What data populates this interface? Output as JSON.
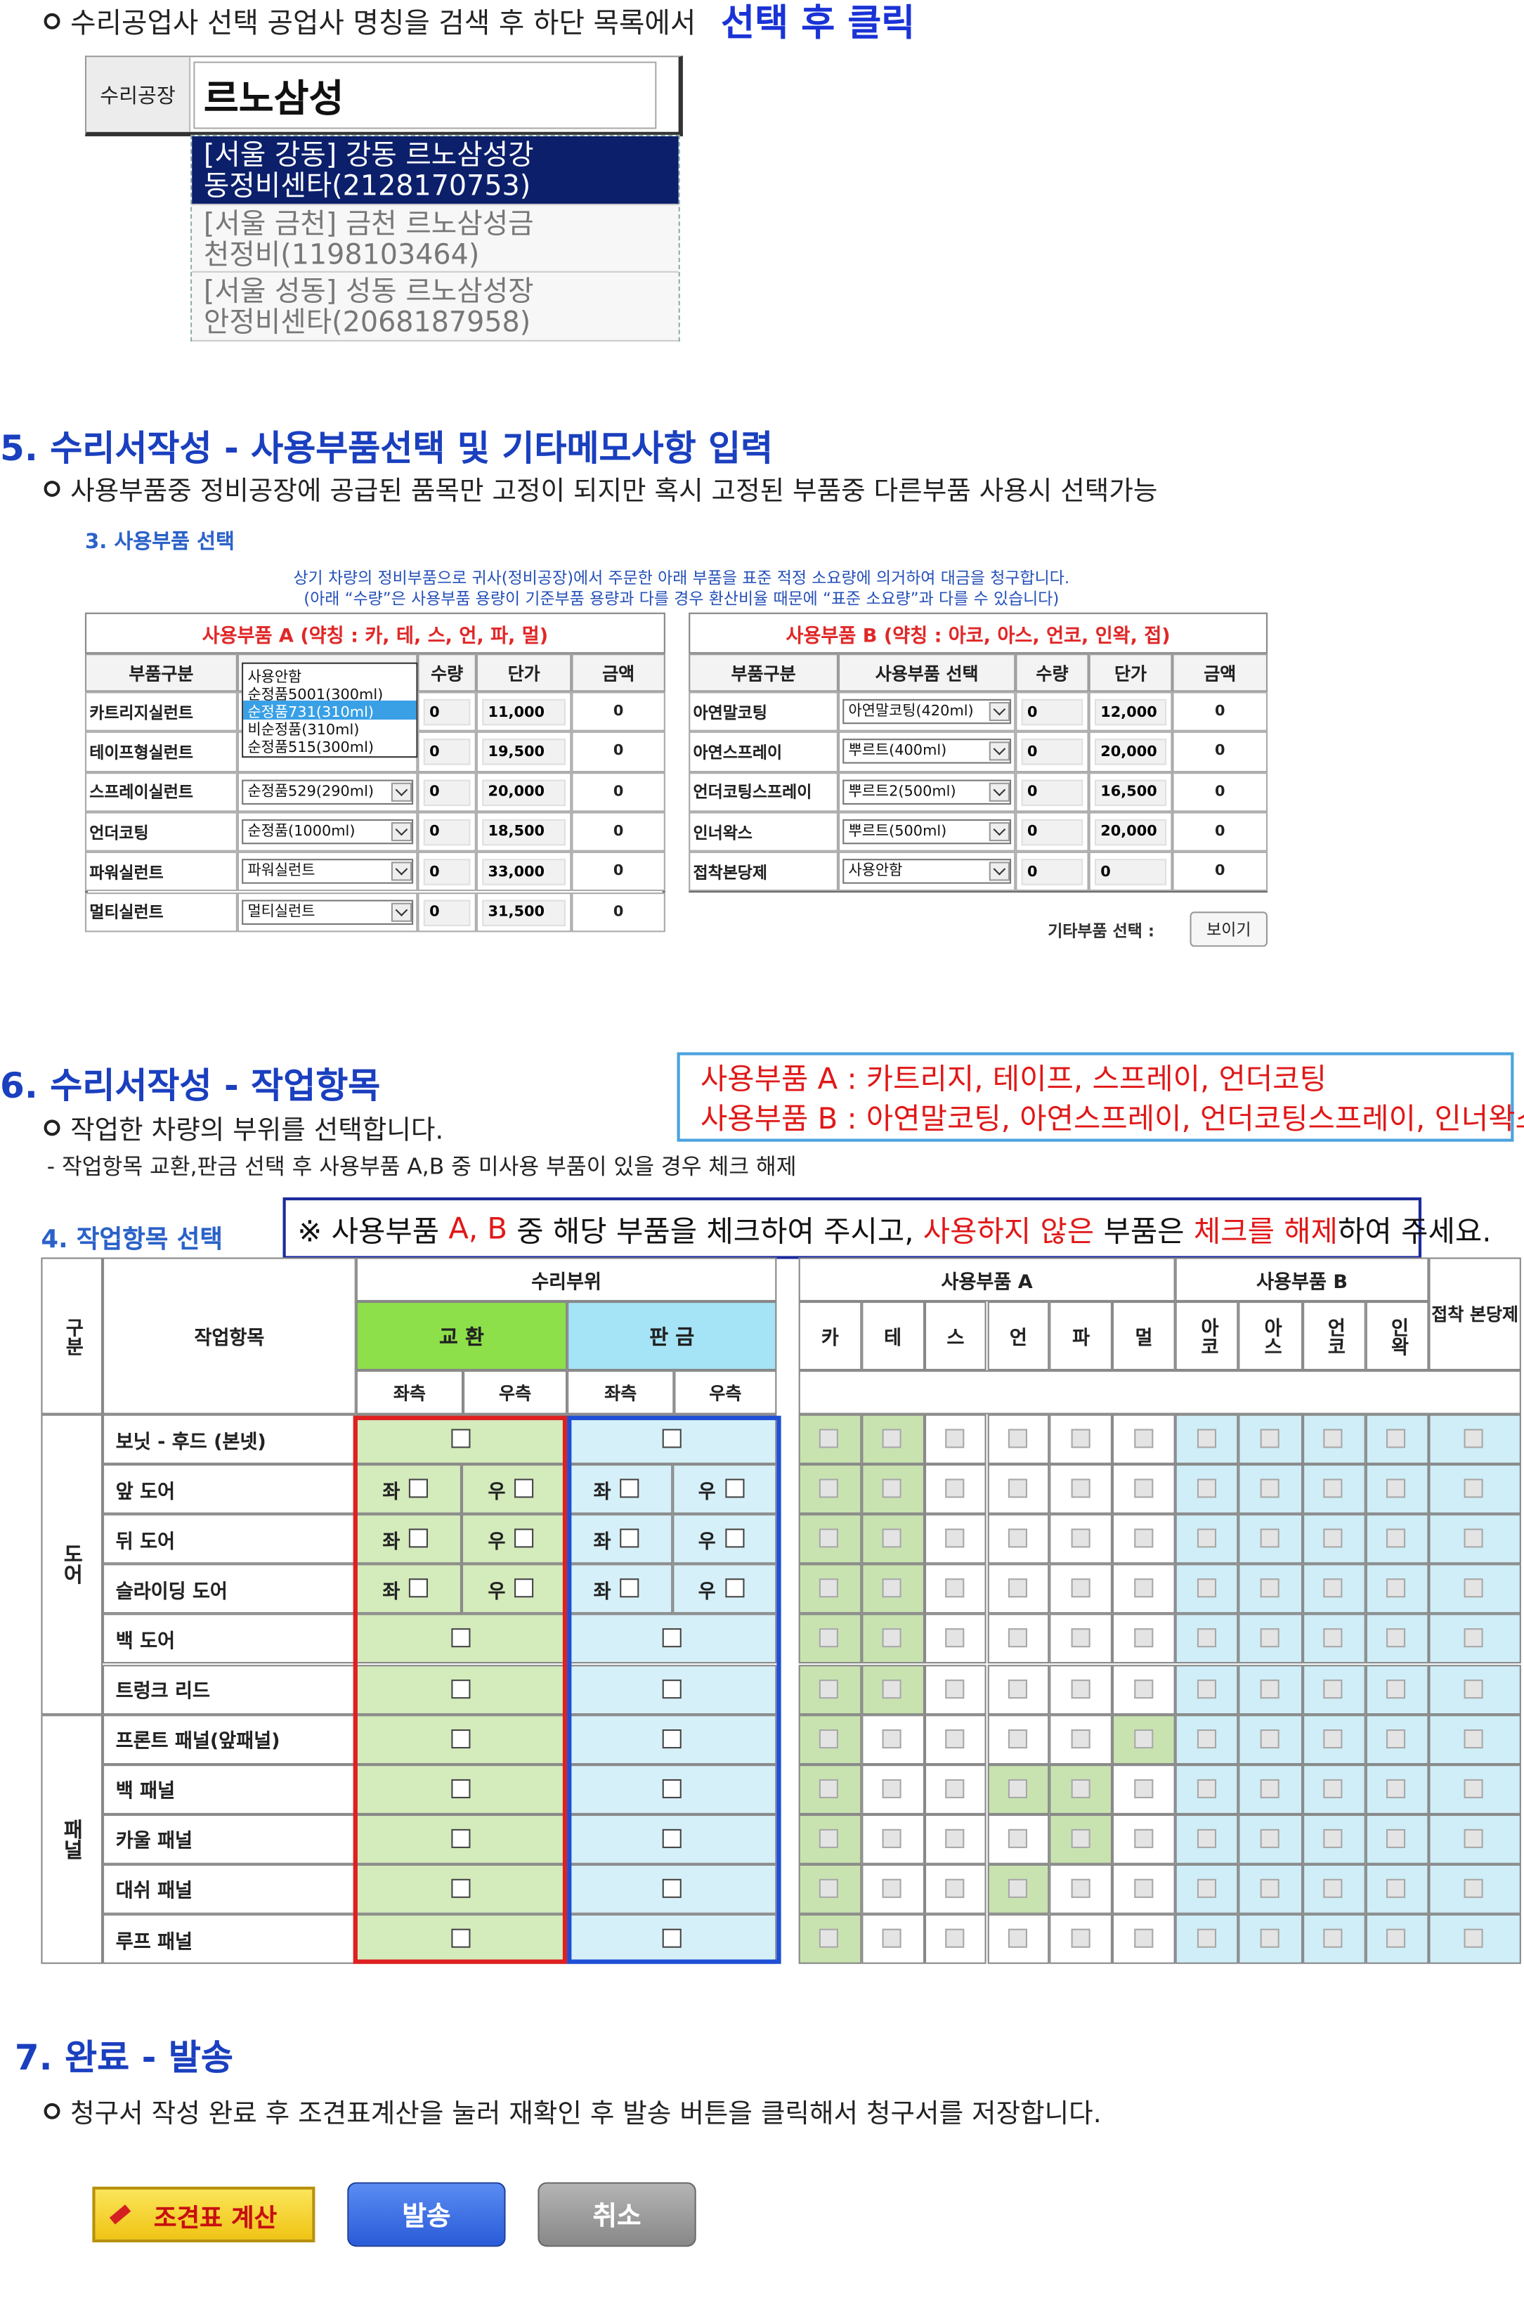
{
  "step4": {
    "bullet": "수리공업사 선택 공업사 명칭을 검색 후 하단 목록에서",
    "emphasis": "선택 후 클릭",
    "search_label": "수리공장",
    "search_query": "르노삼성",
    "results": [
      [
        "[서울 강동] 강동 르노삼성강",
        "동정비센타(2128170753)"
      ],
      [
        "[서울 금천] 금천 르노삼성금",
        "천정비(1198103464)"
      ],
      [
        "[서울 성동] 성동 르노삼성장",
        "안정비센타(2068187958)"
      ]
    ]
  },
  "section5": {
    "title": "5. 수리서작성 - 사용부품선택 및 기타메모사항 입력",
    "bullet": "사용부품중 정비공장에 공급된 품목만 고정이 되지만 혹시 고정된 부품중 다른부품 사용시 선택가능",
    "panel_title": "3. 사용부품 선택",
    "notice": [
      "상기 차량의 정비부품으로 귀사(정비공장)에서 주문한 아래 부품을 표준 적정 소요량에 의거하여 대금을 청구합니다.",
      "(아래 “수량”은 사용부품 용량이 기준부품 용량과 다를 경우 환산비율 때문에 “표준 소요량”과 다를 수 있습니다)"
    ],
    "tables": [
      {
        "title": "사용부품 A (약칭 : 카, 테, 스, 언, 파, 멀)",
        "headers": [
          "부품구분",
          "사용부품 선택",
          "수량",
          "단가",
          "금액"
        ],
        "rows": [
          [
            "카트리지실런트",
            null,
            "0",
            "11,000",
            "0"
          ],
          [
            "테이프형실런트",
            null,
            "0",
            "19,500",
            "0"
          ],
          [
            "스프레이실런트",
            "순정품529(290ml)",
            "0",
            "20,000",
            "0"
          ],
          [
            "언더코팅",
            "순정품(1000ml)",
            "0",
            "18,500",
            "0"
          ],
          [
            "파워실런트",
            "파워실런트",
            "0",
            "33,000",
            "0"
          ],
          [
            "멀티실런트",
            "멀티실런트",
            "0",
            "31,500",
            "0"
          ]
        ]
      },
      {
        "title": "사용부품 B (약칭 : 아코, 아스, 언코, 인왁, 접)",
        "headers": [
          "부품구분",
          "사용부품 선택",
          "수량",
          "단가",
          "금액"
        ],
        "rows": [
          [
            "아연말코팅",
            "아연말코팅(420ml)",
            "0",
            "12,000",
            "0"
          ],
          [
            "아연스프레이",
            "뿌르트(400ml)",
            "0",
            "20,000",
            "0"
          ],
          [
            "언더코팅스프레이",
            "뿌르트2(500ml)",
            "0",
            "16,500",
            "0"
          ],
          [
            "인너왁스",
            "뿌르트(500ml)",
            "0",
            "20,000",
            "0"
          ],
          [
            "접착본당제",
            "사용안함",
            "0",
            "0",
            "0"
          ]
        ]
      }
    ],
    "dropdown": {
      "options": [
        "사용안함",
        "순정품5001(300ml)",
        "순정품731(310ml)",
        "비순정품(310ml)",
        "순정품515(300ml)"
      ],
      "selected": 2
    },
    "other_label": "기타부품 선택 :",
    "other_button": "보이기"
  },
  "section6": {
    "title": "6. 수리서작성 - 작업항목",
    "bullet": "작업한 차량의 부위를 선택합니다.",
    "sub": "- 작업항목 교환,판금 선택 후 사용부품 A,B 중 미사용 부품이 있을 경우 체크 해제",
    "callout": [
      "사용부품 A : 카트리지, 테이프, 스프레이, 언더코팅",
      "사용부품 B : 아연말코팅, 아연스프레이, 언더코팅스프레이, 인너왁스"
    ],
    "panel_title": "4. 작업항목 선택",
    "notice": [
      {
        "text": "※ 사용부품 ",
        "red": false
      },
      {
        "text": "A, B",
        "red": true
      },
      {
        "text": " 중 해당 부품을 체크하여 주시고, ",
        "red": false
      },
      {
        "text": "사용하지 않은",
        "red": true
      },
      {
        "text": " 부품은 ",
        "red": false
      },
      {
        "text": "체크를 해제",
        "red": true
      },
      {
        "text": "하여 주세요.",
        "red": false
      }
    ],
    "headers": {
      "group": "구분",
      "item": "작업항목",
      "repair": "수리부위",
      "exchange": "교 환",
      "sheet": "판 금",
      "parts_a": "사용부품 A",
      "parts_b": "사용부품 B",
      "glue": "접착 본당제",
      "sides": [
        "좌측",
        "우측",
        "좌측",
        "우측"
      ],
      "a_cols": [
        "카",
        "테",
        "스",
        "언",
        "파",
        "멀"
      ],
      "b_cols": [
        "아코",
        "아스",
        "언코",
        "인왁"
      ]
    },
    "side_marks": [
      "좌",
      "우"
    ],
    "groups": [
      {
        "name": "도어",
        "rows": [
          {
            "item": "보닛 - 후드 (본넷)",
            "split": false,
            "shaded": [
              0,
              1
            ]
          },
          {
            "item": "앞 도어",
            "split": true,
            "shaded": [
              0,
              1
            ]
          },
          {
            "item": "뒤 도어",
            "split": true,
            "shaded": [
              0,
              1
            ]
          },
          {
            "item": "슬라이딩 도어",
            "split": true,
            "shaded": [
              0,
              1
            ]
          },
          {
            "item": "백 도어",
            "split": false,
            "shaded": [
              0,
              1
            ]
          },
          {
            "item": "트렁크 리드",
            "split": false,
            "shaded": [
              0,
              1
            ]
          }
        ]
      },
      {
        "name": "패널",
        "rows": [
          {
            "item": "프론트 패널(앞패널)",
            "split": false,
            "shaded": [
              0,
              5
            ]
          },
          {
            "item": "백 패널",
            "split": false,
            "shaded": [
              0,
              3,
              4
            ]
          },
          {
            "item": "카울 패널",
            "split": false,
            "shaded": [
              0,
              4
            ]
          },
          {
            "item": "대쉬 패널",
            "split": false,
            "shaded": [
              0,
              3
            ]
          },
          {
            "item": "루프 패널",
            "split": false,
            "shaded": [
              0
            ]
          }
        ]
      }
    ]
  },
  "section7": {
    "title": "7. 완료 - 발송",
    "bullet": "청구서 작성 완료 후 조견표계산을 눌러 재확인 후 발송 버튼을 클릭해서 청구서를 저장합니다.",
    "buttons": [
      "조견표 계산",
      "발송",
      "취소"
    ]
  }
}
